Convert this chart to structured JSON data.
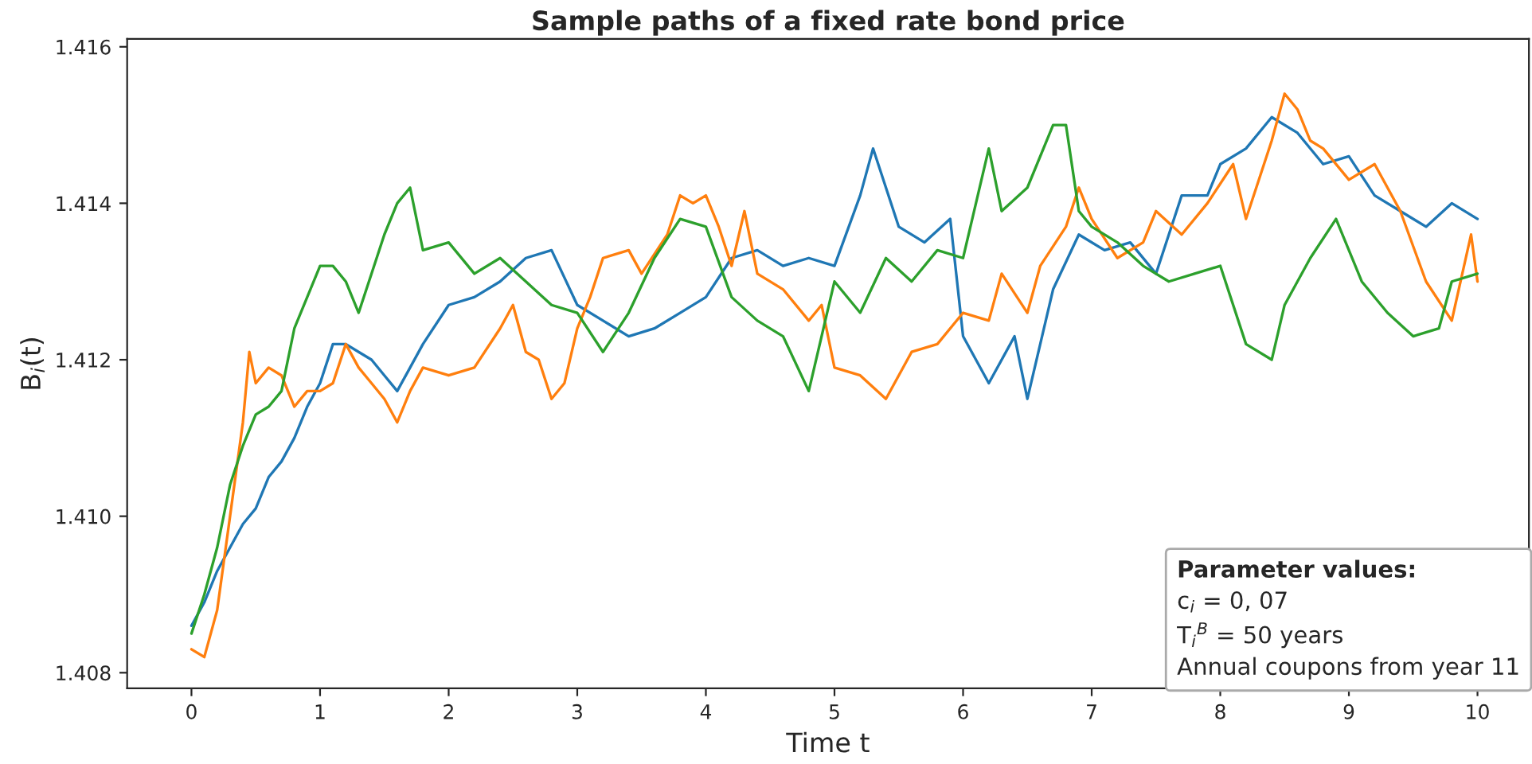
{
  "chart_data": {
    "type": "line",
    "title": "Sample paths of a fixed rate bond price",
    "xlabel": "Time t",
    "ylabel": "B$_{i}$(t)",
    "xlim": [
      -0.5,
      10.4
    ],
    "xticks": [
      0,
      1,
      2,
      3,
      4,
      5,
      6,
      7,
      8,
      9,
      10
    ],
    "ylim": [
      1.4078,
      1.4161
    ],
    "yticks": [
      1.408,
      {
        "value": 1.41,
        "label": "1.410"
      },
      1.412,
      1.414,
      1.416
    ],
    "grid": false,
    "marker": "none",
    "line_style": "solid",
    "annotations": [
      "Parameter values:",
      "c$_{i}$ = 0, 07",
      "T$_{i}$$^{B}$ = 50 years",
      "Annual coupons from year 11"
    ],
    "series": [
      {
        "color": "#1f77b4",
        "x": [
          0,
          0.1,
          0.2,
          0.3,
          0.4,
          0.5,
          0.6,
          0.7,
          0.8,
          0.9,
          1.0,
          1.1,
          1.2,
          1.3,
          1.4,
          1.5,
          1.6,
          1.8,
          2.0,
          2.2,
          2.4,
          2.6,
          2.8,
          3.0,
          3.2,
          3.4,
          3.6,
          3.8,
          4.0,
          4.2,
          4.4,
          4.6,
          4.8,
          5.0,
          5.2,
          5.3,
          5.5,
          5.7,
          5.9,
          6.0,
          6.2,
          6.4,
          6.5,
          6.7,
          6.9,
          7.1,
          7.3,
          7.5,
          7.7,
          7.9,
          8.0,
          8.2,
          8.4,
          8.6,
          8.8,
          9.0,
          9.2,
          9.4,
          9.6,
          9.8,
          10.0
        ],
        "values": [
          1.4086,
          1.4089,
          1.4093,
          1.4096,
          1.4099,
          1.4101,
          1.4105,
          1.4107,
          1.411,
          1.4114,
          1.4117,
          1.4122,
          1.4122,
          1.4121,
          1.412,
          1.4118,
          1.4116,
          1.4122,
          1.4127,
          1.4128,
          1.413,
          1.4133,
          1.4134,
          1.4127,
          1.4125,
          1.4123,
          1.4124,
          1.4126,
          1.4128,
          1.4133,
          1.4134,
          1.4132,
          1.4133,
          1.4132,
          1.4141,
          1.4147,
          1.4137,
          1.4135,
          1.4138,
          1.4123,
          1.4117,
          1.4123,
          1.4115,
          1.4129,
          1.4136,
          1.4134,
          1.4135,
          1.4131,
          1.4141,
          1.4141,
          1.4145,
          1.4147,
          1.4151,
          1.4149,
          1.4145,
          1.4146,
          1.4141,
          1.4139,
          1.4137,
          1.414,
          1.4138
        ]
      },
      {
        "color": "#ff7f0e",
        "x": [
          0,
          0.1,
          0.2,
          0.3,
          0.4,
          0.45,
          0.5,
          0.6,
          0.7,
          0.8,
          0.9,
          1.0,
          1.1,
          1.2,
          1.3,
          1.4,
          1.5,
          1.6,
          1.7,
          1.8,
          2.0,
          2.2,
          2.4,
          2.5,
          2.6,
          2.7,
          2.8,
          2.9,
          3.0,
          3.1,
          3.2,
          3.4,
          3.5,
          3.7,
          3.8,
          3.9,
          4.0,
          4.1,
          4.2,
          4.3,
          4.4,
          4.6,
          4.8,
          4.9,
          5.0,
          5.2,
          5.4,
          5.6,
          5.8,
          6.0,
          6.2,
          6.3,
          6.5,
          6.6,
          6.8,
          6.9,
          7.0,
          7.2,
          7.4,
          7.5,
          7.7,
          7.9,
          8.1,
          8.2,
          8.4,
          8.5,
          8.6,
          8.7,
          8.8,
          9.0,
          9.2,
          9.4,
          9.6,
          9.8,
          9.95,
          10.0
        ],
        "values": [
          1.4083,
          1.4082,
          1.4088,
          1.41,
          1.4112,
          1.4121,
          1.4117,
          1.4119,
          1.4118,
          1.4114,
          1.4116,
          1.4116,
          1.4117,
          1.4122,
          1.4119,
          1.4117,
          1.4115,
          1.4112,
          1.4116,
          1.4119,
          1.4118,
          1.4119,
          1.4124,
          1.4127,
          1.4121,
          1.412,
          1.4115,
          1.4117,
          1.4124,
          1.4128,
          1.4133,
          1.4134,
          1.4131,
          1.4136,
          1.4141,
          1.414,
          1.4141,
          1.4137,
          1.4132,
          1.4139,
          1.4131,
          1.4129,
          1.4125,
          1.4127,
          1.4119,
          1.4118,
          1.4115,
          1.4121,
          1.4122,
          1.4126,
          1.4125,
          1.4131,
          1.4126,
          1.4132,
          1.4137,
          1.4142,
          1.4138,
          1.4133,
          1.4135,
          1.4139,
          1.4136,
          1.414,
          1.4145,
          1.4138,
          1.4148,
          1.4154,
          1.4152,
          1.4148,
          1.4147,
          1.4143,
          1.4145,
          1.4139,
          1.413,
          1.4125,
          1.4136,
          1.413
        ]
      },
      {
        "color": "#2ca02c",
        "x": [
          0,
          0.1,
          0.2,
          0.3,
          0.4,
          0.5,
          0.6,
          0.7,
          0.8,
          0.9,
          1.0,
          1.1,
          1.2,
          1.3,
          1.4,
          1.5,
          1.6,
          1.7,
          1.8,
          2.0,
          2.2,
          2.4,
          2.6,
          2.8,
          3.0,
          3.2,
          3.4,
          3.6,
          3.8,
          4.0,
          4.2,
          4.4,
          4.6,
          4.8,
          5.0,
          5.2,
          5.4,
          5.6,
          5.8,
          6.0,
          6.2,
          6.3,
          6.5,
          6.7,
          6.8,
          6.9,
          7.0,
          7.2,
          7.4,
          7.6,
          7.8,
          8.0,
          8.2,
          8.4,
          8.5,
          8.7,
          8.9,
          9.1,
          9.3,
          9.5,
          9.7,
          9.8,
          10.0
        ],
        "values": [
          1.4085,
          1.409,
          1.4096,
          1.4104,
          1.4109,
          1.4113,
          1.4114,
          1.4116,
          1.4124,
          1.4128,
          1.4132,
          1.4132,
          1.413,
          1.4126,
          1.4131,
          1.4136,
          1.414,
          1.4142,
          1.4134,
          1.4135,
          1.4131,
          1.4133,
          1.413,
          1.4127,
          1.4126,
          1.4121,
          1.4126,
          1.4133,
          1.4138,
          1.4137,
          1.4128,
          1.4125,
          1.4123,
          1.4116,
          1.413,
          1.4126,
          1.4133,
          1.413,
          1.4134,
          1.4133,
          1.4147,
          1.4139,
          1.4142,
          1.415,
          1.415,
          1.4139,
          1.4137,
          1.4135,
          1.4132,
          1.413,
          1.4131,
          1.4132,
          1.4122,
          1.412,
          1.4127,
          1.4133,
          1.4138,
          1.413,
          1.4126,
          1.4123,
          1.4124,
          1.413,
          1.4131
        ]
      }
    ]
  }
}
